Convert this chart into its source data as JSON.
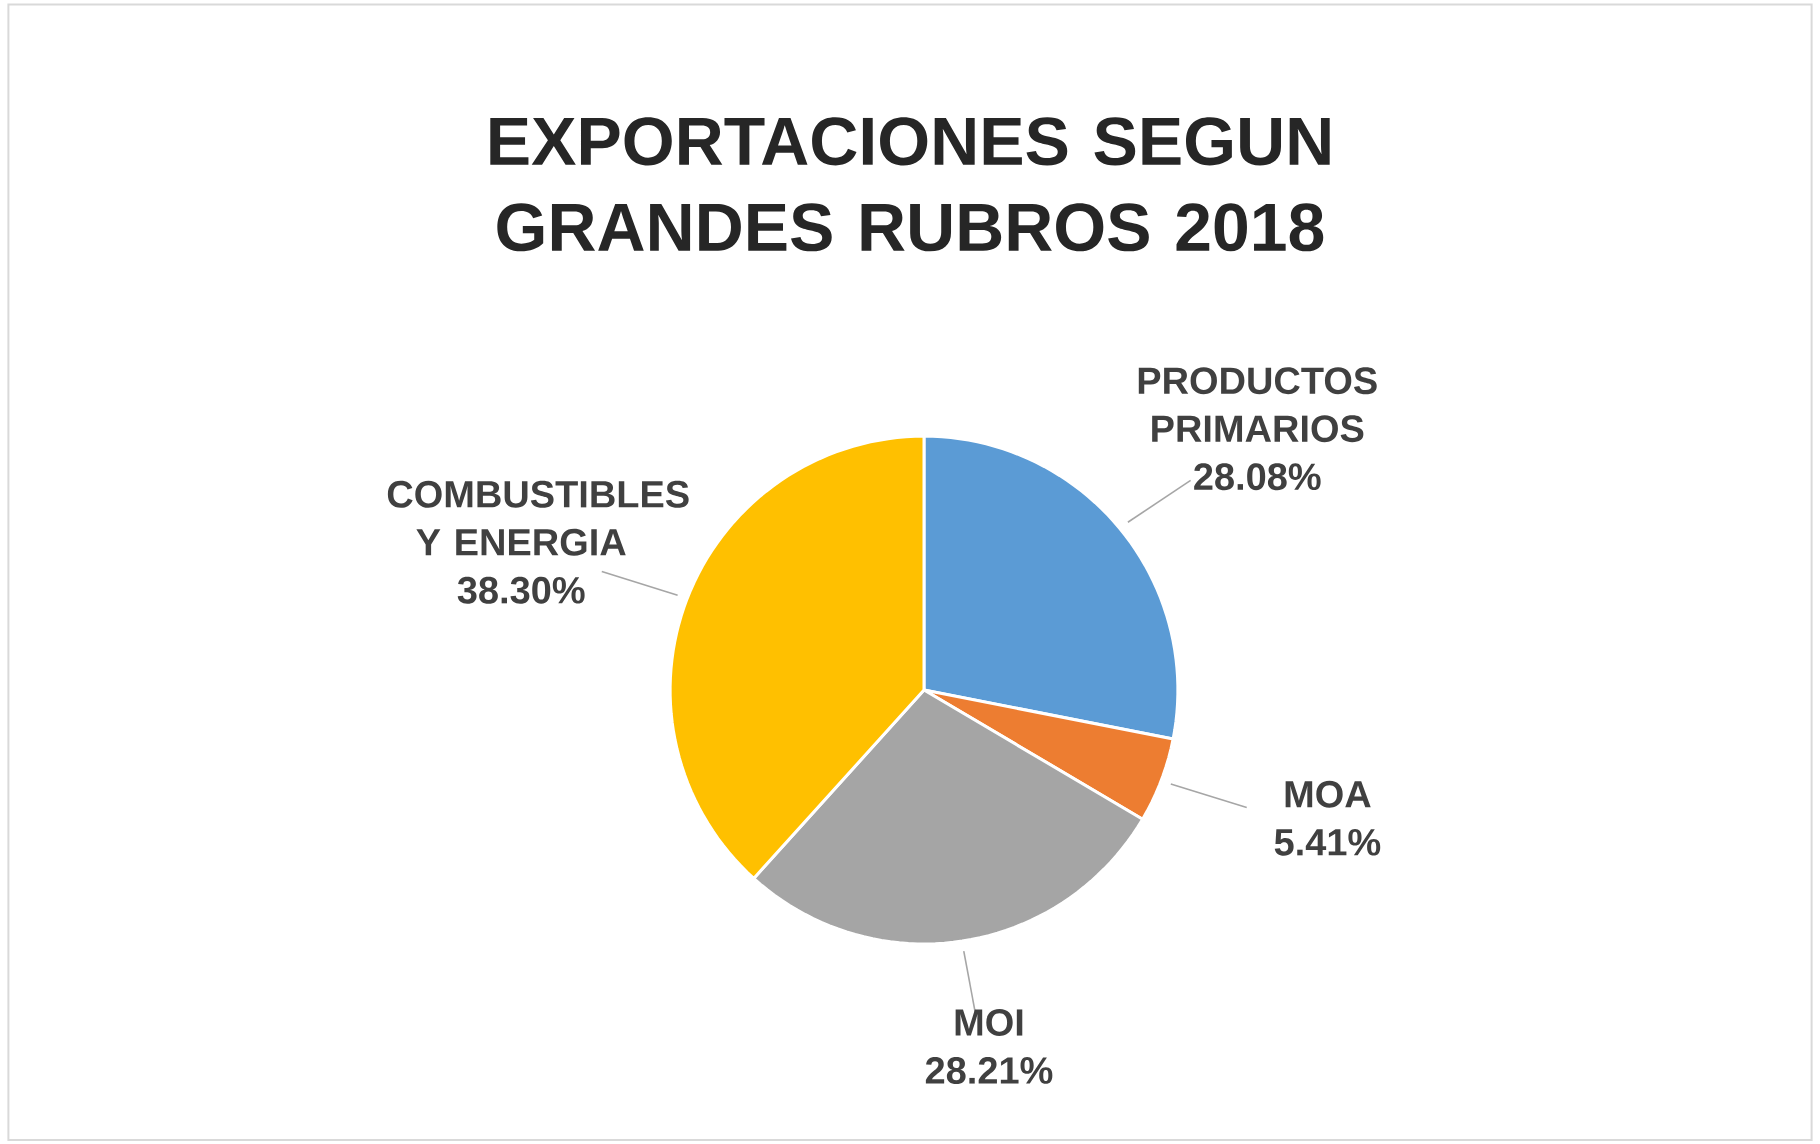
{
  "chart_data": {
    "type": "pie",
    "title": "EXPORTACIONES SEGUN GRANDES RUBROS 2018",
    "categories": [
      "PRODUCTOS PRIMARIOS",
      "MOA",
      "MOI",
      "COMBUSTIBLES Y ENERGIA"
    ],
    "values": [
      28.08,
      5.41,
      28.21,
      38.3
    ],
    "value_labels": [
      "28.08%",
      "5.41%",
      "28.21%",
      "38.30%"
    ],
    "colors": [
      "#5b9bd5",
      "#ed7d31",
      "#a5a5a5",
      "#ffc000"
    ]
  }
}
